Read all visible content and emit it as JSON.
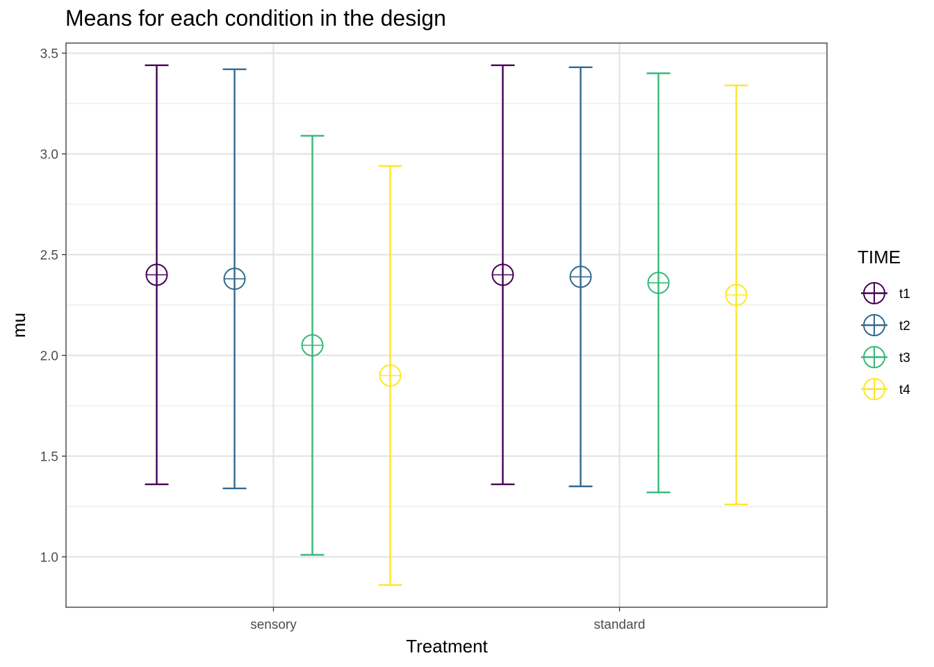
{
  "chart_data": {
    "type": "errorbar",
    "title": "Means for each condition in the design",
    "xlabel": "Treatment",
    "ylabel": "mu",
    "categories": [
      "sensory",
      "standard"
    ],
    "ylim": [
      0.75,
      3.55
    ],
    "yticks": [
      "1.0",
      "1.5",
      "2.0",
      "2.5",
      "3.0",
      "3.5"
    ],
    "legend": {
      "title": "TIME",
      "position": "right"
    },
    "grid": true,
    "series": [
      {
        "name": "t1",
        "color": "#440154",
        "points": [
          {
            "x": "sensory",
            "mean": 2.4,
            "lower": 1.36,
            "upper": 3.44
          },
          {
            "x": "standard",
            "mean": 2.4,
            "lower": 1.36,
            "upper": 3.44
          }
        ]
      },
      {
        "name": "t2",
        "color": "#31688E",
        "points": [
          {
            "x": "sensory",
            "mean": 2.38,
            "lower": 1.34,
            "upper": 3.42
          },
          {
            "x": "standard",
            "mean": 2.39,
            "lower": 1.35,
            "upper": 3.43
          }
        ]
      },
      {
        "name": "t3",
        "color": "#35B779",
        "points": [
          {
            "x": "sensory",
            "mean": 2.05,
            "lower": 1.01,
            "upper": 3.09
          },
          {
            "x": "standard",
            "mean": 2.36,
            "lower": 1.32,
            "upper": 3.4
          }
        ]
      },
      {
        "name": "t4",
        "color": "#FDE725",
        "points": [
          {
            "x": "sensory",
            "mean": 1.9,
            "lower": 0.86,
            "upper": 2.94
          },
          {
            "x": "standard",
            "mean": 2.3,
            "lower": 1.26,
            "upper": 3.34
          }
        ]
      }
    ]
  }
}
